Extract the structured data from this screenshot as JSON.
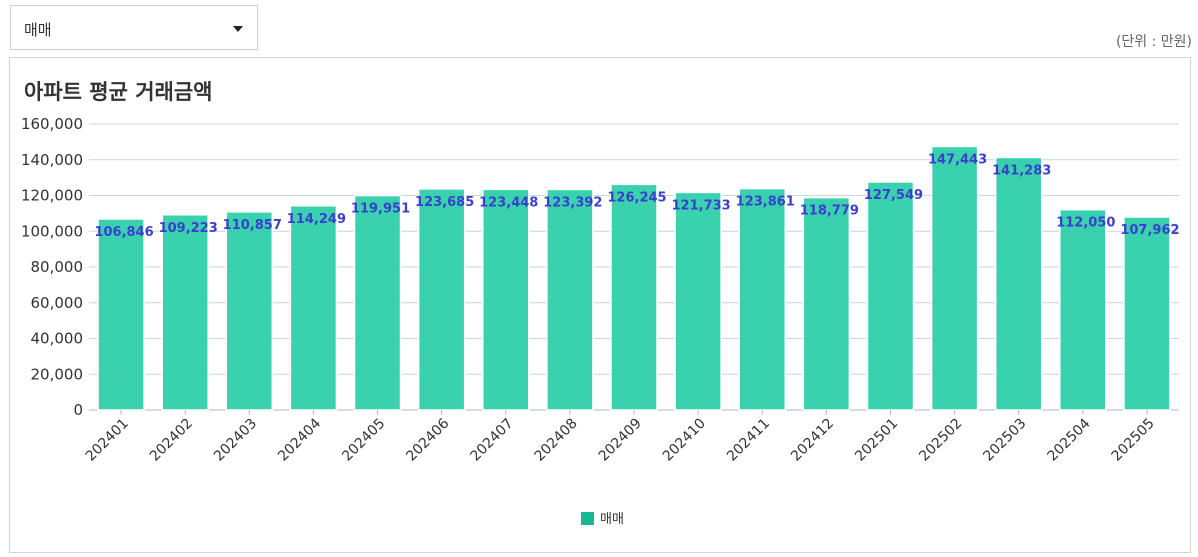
{
  "dropdown": {
    "selected": "매매"
  },
  "unit_note": "(단위 : 만원)",
  "colors": {
    "bar": "#2ecfaa",
    "label": "#3a3fcf",
    "grid": "#c9d4e6",
    "legend": "#18b894"
  },
  "chart_data": {
    "type": "bar",
    "title": "아파트 평균 거래금액",
    "categories": [
      "202401",
      "202402",
      "202403",
      "202404",
      "202405",
      "202406",
      "202407",
      "202408",
      "202409",
      "202410",
      "202411",
      "202412",
      "202501",
      "202502",
      "202503",
      "202504",
      "202505"
    ],
    "series": [
      {
        "name": "매매",
        "values": [
          106846,
          109223,
          110857,
          114249,
          119951,
          123685,
          123448,
          123392,
          126245,
          121733,
          123861,
          118779,
          127549,
          147443,
          141283,
          112050,
          107962
        ],
        "value_labels": [
          "106,846",
          "109,223",
          "110,857",
          "114,249",
          "119,951",
          "123,685",
          "123,448",
          "123,392",
          "126,245",
          "121,733",
          "123,861",
          "118,779",
          "127,549",
          "147,443",
          "141,283",
          "112,050",
          "107,962"
        ]
      }
    ],
    "yticks": [
      "0",
      "20,000",
      "40,000",
      "60,000",
      "80,000",
      "100,000",
      "120,000",
      "140,000",
      "160,000"
    ],
    "ylim": [
      0,
      160000
    ],
    "grid": true,
    "legend_position": "bottom-center"
  }
}
